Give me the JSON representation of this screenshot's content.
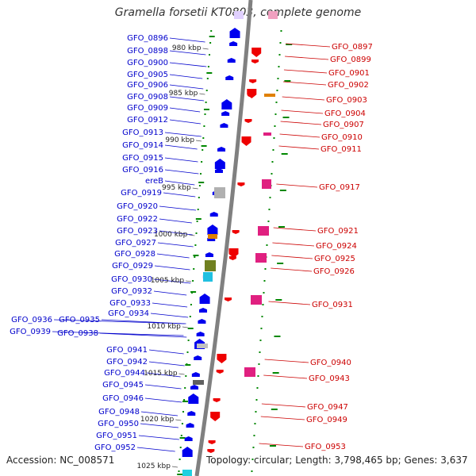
{
  "title": "Gramella forsetii KT0803, complete genome",
  "accession_label": "Accession: NC_008571",
  "topology_label": "Topology: circular; Length: 3,798,465 bp; Genes: 3,637",
  "colors": {
    "plus_strand": "#0000ee",
    "minus_strand": "#ee0000",
    "tick": "#008800",
    "backbone": "#808080",
    "left_label": "#0000cc",
    "right_label": "#cc0000"
  },
  "kbp_ticks": [
    "980 kbp",
    "985 kbp",
    "990 kbp",
    "995 kbp",
    "1000 kbp",
    "1005 kbp",
    "1010 kbp",
    "1015 kbp",
    "1020 kbp",
    "1025 kbp"
  ],
  "left_genes": [
    "GFO_0896",
    "GFO_0898",
    "GFO_0900",
    "GFO_0905",
    "GFO_0906",
    "GFO_0908",
    "GFO_0909",
    "GFO_0912",
    "GFO_0913",
    "GFO_0914",
    "GFO_0915",
    "GFO_0916",
    "ereB",
    "GFO_0919",
    "GFO_0920",
    "GFO_0922",
    "GFO_0923",
    "GFO_0927",
    "GFO_0928",
    "GFO_0929",
    "GFO_0930",
    "GFO_0932",
    "GFO_0933",
    "GFO_0934",
    "GFO_0935",
    "GFO_0936",
    "GFO_0938",
    "GFO_0939",
    "GFO_0941",
    "GFO_0942",
    "GFO_0944",
    "GFO_0945",
    "GFO_0946",
    "GFO_0948",
    "GFO_0950",
    "GFO_0951",
    "GFO_0952"
  ],
  "right_genes": [
    "GFO_0897",
    "GFO_0899",
    "GFO_0901",
    "GFO_0902",
    "GFO_0903",
    "GFO_0904",
    "GFO_0907",
    "GFO_0910",
    "GFO_0911",
    "GFO_0917",
    "GFO_0921",
    "GFO_0924",
    "GFO_0925",
    "GFO_0926",
    "GFO_0931",
    "GFO_0940",
    "GFO_0943",
    "GFO_0947",
    "GFO_0949",
    "GFO_0953"
  ]
}
